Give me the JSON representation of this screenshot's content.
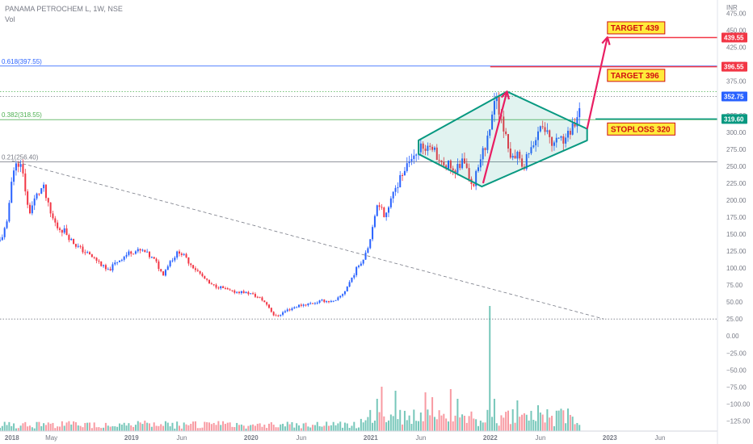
{
  "header": {
    "symbol": "PANAMA PETROCHEM L, 1W, NSE",
    "volume_label": "Vol"
  },
  "chart_data": {
    "type": "candlestick",
    "currency": "INR",
    "y_axis": {
      "range": [
        -140,
        490
      ],
      "ticks": [
        475,
        450,
        425,
        400,
        375,
        350,
        325,
        300,
        275,
        250,
        225,
        200,
        175,
        150,
        125,
        100,
        75,
        50,
        25,
        0,
        -25,
        -50,
        -75,
        -100,
        -125
      ],
      "tick_labels": [
        "475.00",
        "450.00",
        "425.00",
        "400.00",
        "375.00",
        "350.00",
        "325.00",
        "300.00",
        "275.00",
        "250.00",
        "225.00",
        "200.00",
        "175.00",
        "150.00",
        "125.00",
        "100.00",
        "75.00",
        "50.00",
        "25.00",
        "0.00",
        "−25.00",
        "−50.00",
        "−75.00",
        "−100.00",
        "−125.00"
      ]
    },
    "x_axis": {
      "range": [
        2017.9,
        2023.9
      ],
      "ticks": [
        {
          "t": 2018.0,
          "label": "2018"
        },
        {
          "t": 2018.33,
          "label": "May"
        },
        {
          "t": 2019.0,
          "label": "2019"
        },
        {
          "t": 2019.42,
          "label": "Jun"
        },
        {
          "t": 2020.0,
          "label": "2020"
        },
        {
          "t": 2020.42,
          "label": "Jun"
        },
        {
          "t": 2021.0,
          "label": "2021"
        },
        {
          "t": 2021.42,
          "label": "Jun"
        },
        {
          "t": 2022.0,
          "label": "2022"
        },
        {
          "t": 2022.42,
          "label": "Jun"
        },
        {
          "t": 2023.0,
          "label": "2023"
        },
        {
          "t": 2023.42,
          "label": "Jun"
        }
      ]
    },
    "price_path": [
      [
        2017.9,
        140
      ],
      [
        2017.96,
        165
      ],
      [
        2018.0,
        240
      ],
      [
        2018.06,
        258
      ],
      [
        2018.1,
        230
      ],
      [
        2018.14,
        180
      ],
      [
        2018.2,
        205
      ],
      [
        2018.26,
        220
      ],
      [
        2018.32,
        180
      ],
      [
        2018.38,
        160
      ],
      [
        2018.44,
        155
      ],
      [
        2018.5,
        140
      ],
      [
        2018.56,
        130
      ],
      [
        2018.64,
        120
      ],
      [
        2018.72,
        110
      ],
      [
        2018.8,
        95
      ],
      [
        2018.88,
        110
      ],
      [
        2019.0,
        125
      ],
      [
        2019.1,
        125
      ],
      [
        2019.2,
        110
      ],
      [
        2019.26,
        90
      ],
      [
        2019.32,
        110
      ],
      [
        2019.4,
        125
      ],
      [
        2019.5,
        105
      ],
      [
        2019.58,
        90
      ],
      [
        2019.66,
        75
      ],
      [
        2019.74,
        72
      ],
      [
        2019.84,
        65
      ],
      [
        2019.92,
        65
      ],
      [
        2020.0,
        62
      ],
      [
        2020.08,
        55
      ],
      [
        2020.14,
        45
      ],
      [
        2020.2,
        28
      ],
      [
        2020.3,
        38
      ],
      [
        2020.4,
        45
      ],
      [
        2020.5,
        48
      ],
      [
        2020.6,
        52
      ],
      [
        2020.7,
        50
      ],
      [
        2020.78,
        65
      ],
      [
        2020.84,
        85
      ],
      [
        2020.9,
        105
      ],
      [
        2020.96,
        120
      ],
      [
        2021.0,
        150
      ],
      [
        2021.06,
        200
      ],
      [
        2021.12,
        175
      ],
      [
        2021.18,
        205
      ],
      [
        2021.26,
        240
      ],
      [
        2021.32,
        260
      ],
      [
        2021.38,
        275
      ],
      [
        2021.46,
        275
      ],
      [
        2021.54,
        270
      ],
      [
        2021.62,
        255
      ],
      [
        2021.7,
        245
      ],
      [
        2021.78,
        260
      ],
      [
        2021.86,
        220
      ],
      [
        2021.92,
        265
      ],
      [
        2021.98,
        290
      ],
      [
        2022.04,
        355
      ],
      [
        2022.1,
        310
      ],
      [
        2022.16,
        270
      ],
      [
        2022.22,
        265
      ],
      [
        2022.28,
        250
      ],
      [
        2022.34,
        275
      ],
      [
        2022.4,
        300
      ],
      [
        2022.46,
        310
      ],
      [
        2022.52,
        285
      ],
      [
        2022.58,
        285
      ],
      [
        2022.64,
        295
      ],
      [
        2022.7,
        310
      ],
      [
        2022.76,
        352
      ]
    ],
    "volume_spikes": [
      {
        "t": 2021.05,
        "v": 40
      },
      {
        "t": 2021.1,
        "v": 55
      },
      {
        "t": 2021.2,
        "v": 50
      },
      {
        "t": 2021.46,
        "v": 48
      },
      {
        "t": 2021.52,
        "v": 42
      },
      {
        "t": 2021.66,
        "v": 52
      },
      {
        "t": 2021.72,
        "v": 40
      },
      {
        "t": 2022.0,
        "v": 155
      },
      {
        "t": 2022.03,
        "v": 40
      },
      {
        "t": 2022.22,
        "v": 38
      },
      {
        "t": 2022.4,
        "v": 32
      },
      {
        "t": 2022.76,
        "v": 30
      }
    ],
    "fib_levels": [
      {
        "label": "0.618(397.55)",
        "value": 397.55,
        "color": "#2962ff"
      },
      {
        "label": "0.382(318.55)",
        "value": 318.55,
        "color": "#4caf50"
      },
      {
        "label": "0.21(256.40)",
        "value": 256.4,
        "color": "#787b86"
      }
    ],
    "dotted_levels": [
      {
        "value": 360,
        "color": "#4caf50"
      },
      {
        "value": 352.75,
        "color": "#787b86"
      },
      {
        "value": 25,
        "color": "#787b86"
      }
    ],
    "diamond_pattern": [
      [
        2021.4,
        288
      ],
      [
        2022.14,
        360
      ],
      [
        2022.81,
        305
      ],
      [
        2022.81,
        288
      ],
      [
        2021.93,
        220
      ],
      [
        2021.4,
        268
      ]
    ],
    "price_tags": [
      {
        "label": "439.55",
        "value": 439.55,
        "color": "#f23645"
      },
      {
        "label": "396.55",
        "value": 396.55,
        "color": "#f23645"
      },
      {
        "label": "352.75",
        "value": 352.75,
        "color": "#2962ff"
      },
      {
        "label": "319.60",
        "value": 319.6,
        "color": "#089981"
      }
    ],
    "annotations": [
      {
        "text": "TARGET 439",
        "value": 452
      },
      {
        "text": "TARGET 396",
        "value": 382
      },
      {
        "text": "STOPLOSS 320",
        "value": 303
      }
    ]
  }
}
